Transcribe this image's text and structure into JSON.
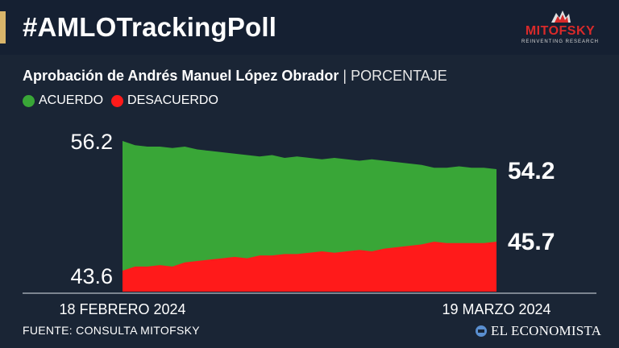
{
  "header": {
    "title": "#AMLOTrackingPoll",
    "logo_name": "MITOFSKY",
    "logo_tagline": "REINVENTING RESEARCH"
  },
  "subtitle": {
    "main": "Aprobación de Andrés Manuel López Obrador",
    "separator": "|",
    "unit": "PORCENTAJE"
  },
  "legend": [
    {
      "label": "ACUERDO",
      "color": "#39a637"
    },
    {
      "label": "DESACUERDO",
      "color": "#ff1a1a"
    }
  ],
  "footer": {
    "source": "FUENTE: CONSULTA MITOFSKY",
    "brand": "EL ECONOMISTA"
  },
  "chart_data": {
    "type": "area",
    "x_start_label": "18 FEBRERO 2024",
    "x_end_label": "19 MARZO 2024",
    "ref_labels": {
      "top": "56.2",
      "bottom": "43.6"
    },
    "end_labels": {
      "acuerdo": "54.2",
      "desacuerdo": "45.7"
    },
    "x": [
      "2024-02-18",
      "2024-02-19",
      "2024-02-20",
      "2024-02-21",
      "2024-02-22",
      "2024-02-23",
      "2024-02-24",
      "2024-02-25",
      "2024-02-26",
      "2024-02-27",
      "2024-02-28",
      "2024-02-29",
      "2024-03-01",
      "2024-03-02",
      "2024-03-03",
      "2024-03-04",
      "2024-03-05",
      "2024-03-06",
      "2024-03-07",
      "2024-03-08",
      "2024-03-09",
      "2024-03-10",
      "2024-03-11",
      "2024-03-12",
      "2024-03-13",
      "2024-03-14",
      "2024-03-15",
      "2024-03-16",
      "2024-03-17",
      "2024-03-18",
      "2024-03-19"
    ],
    "series": [
      {
        "name": "ACUERDO",
        "color": "#39a637",
        "values": [
          56.2,
          55.9,
          55.8,
          55.8,
          55.7,
          55.8,
          55.6,
          55.5,
          55.4,
          55.3,
          55.2,
          55.1,
          55.2,
          55.0,
          55.1,
          55.0,
          54.9,
          55.0,
          54.9,
          54.8,
          54.9,
          54.8,
          54.7,
          54.6,
          54.5,
          54.3,
          54.3,
          54.4,
          54.3,
          54.3,
          54.2
        ]
      },
      {
        "name": "DESACUERDO",
        "color": "#ff1a1a",
        "values": [
          43.6,
          43.9,
          43.9,
          44.0,
          43.9,
          44.2,
          44.3,
          44.4,
          44.5,
          44.6,
          44.5,
          44.7,
          44.7,
          44.8,
          44.8,
          44.9,
          45.0,
          44.9,
          45.0,
          45.1,
          45.0,
          45.2,
          45.3,
          45.4,
          45.5,
          45.7,
          45.6,
          45.6,
          45.6,
          45.6,
          45.7
        ]
      }
    ],
    "y_range": [
      43.6,
      56.2
    ]
  }
}
